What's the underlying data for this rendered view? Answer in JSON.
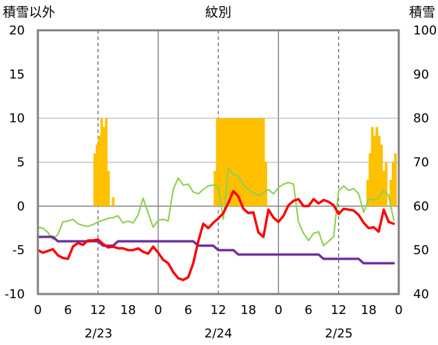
{
  "chart_data": {
    "type": "line",
    "title": "紋別",
    "left_axis": {
      "label": "積雪以外",
      "ylim": [
        -10,
        20
      ],
      "ticks": [
        20,
        15,
        10,
        5,
        0,
        -5,
        -10
      ]
    },
    "right_axis": {
      "label": "積雪",
      "ylim": [
        40,
        100
      ],
      "ticks": [
        100,
        90,
        80,
        70,
        60,
        50,
        40
      ]
    },
    "x_hour_labels": [
      "0",
      "6",
      "12",
      "18",
      "0",
      "6",
      "12",
      "18",
      "0",
      "6",
      "12",
      "18",
      "0"
    ],
    "date_labels": [
      "2/23",
      "2/24",
      "2/25"
    ],
    "grid": true,
    "colors": {
      "bars": "#FFC000",
      "red": "#FF0000",
      "green": "#92D050",
      "purple": "#7030A0",
      "frame": "#808080"
    },
    "series": [
      {
        "type": "bar",
        "axis": "left",
        "values": [
          0,
          0,
          0,
          0,
          0,
          0,
          0,
          0,
          0,
          0,
          0,
          0,
          0,
          0,
          0,
          0,
          0,
          0,
          0,
          0,
          0,
          0,
          0,
          0,
          6,
          7,
          8,
          10,
          9,
          10,
          4,
          0,
          1,
          0,
          0,
          0,
          0,
          0,
          0,
          0,
          0,
          0,
          0,
          0,
          0,
          0,
          0,
          0,
          0,
          0,
          0,
          0,
          0,
          0,
          0,
          0,
          0,
          0,
          0,
          0,
          0,
          0,
          0,
          0,
          0,
          0,
          0,
          0,
          0,
          0,
          0,
          0,
          0,
          0,
          0,
          0,
          4,
          10,
          10,
          10,
          10,
          10,
          10,
          10,
          10,
          10,
          10,
          10,
          10,
          10,
          10,
          10,
          10,
          10,
          10,
          10,
          10,
          10,
          5,
          0,
          0,
          0,
          0,
          0,
          0,
          0,
          0,
          0,
          0,
          0,
          0,
          0,
          0,
          0,
          0,
          0,
          0,
          0,
          0,
          0,
          0,
          0,
          0,
          0,
          0,
          0,
          0,
          0,
          0,
          0,
          0,
          0,
          0,
          0,
          0,
          0,
          0,
          0,
          0,
          0,
          0,
          0,
          3,
          6,
          9,
          8,
          9,
          8,
          7,
          4,
          5,
          0,
          3,
          5,
          6,
          0
        ]
      },
      {
        "type": "line",
        "axis": "left",
        "values": [
          -5,
          -5.3,
          -5.1,
          -4.9,
          -5.6,
          -5.9,
          -6,
          -4.6,
          -4.2,
          -4.4,
          -3.9,
          -3.9,
          -3.8,
          -4.3,
          -4.7,
          -4.6,
          -4.8,
          -4.8,
          -5,
          -5,
          -4.8,
          -5.2,
          -5.4,
          -4.6,
          -5.3,
          -6.1,
          -6.5,
          -7.5,
          -8.2,
          -8.4,
          -8.1,
          -6.5,
          -4,
          -2,
          -2.5,
          -1.9,
          -1.4,
          -0.8,
          0.4,
          1.7,
          1.1,
          -0.3,
          -0.8,
          -0.7,
          -3,
          -3.5,
          -0.4,
          -1.3,
          -1.8,
          -1.1,
          0.1,
          0.6,
          0.8,
          0,
          0,
          0.8,
          0.3,
          0.7,
          0.5,
          0.1,
          -0.9,
          -0.3,
          -0.4,
          -0.5,
          -1,
          -1.9,
          -2.5,
          -2.4,
          -2.9,
          -0.4,
          -1.8,
          -2
        ]
      },
      {
        "type": "line",
        "axis": "left",
        "values": [
          -2.4,
          -2.5,
          -3,
          -3.8,
          -3.2,
          -1.8,
          -1.7,
          -1.5,
          -2,
          -2.2,
          -2.3,
          -2.1,
          -1.8,
          -1.6,
          -1.4,
          -1.3,
          -1.1,
          -1.9,
          -1.7,
          -1.9,
          -1,
          0.9,
          -0.8,
          -2.4,
          -1.6,
          -1.5,
          -1.7,
          1.9,
          3.2,
          2.4,
          2.5,
          1.6,
          1.4,
          1.9,
          2.3,
          2.4,
          2.2,
          -1.5,
          4.3,
          3.6,
          3.4,
          2.4,
          1.9,
          1.5,
          1.2,
          1.5,
          1.9,
          1.4,
          2.1,
          2.5,
          2.7,
          2.5,
          -1.8,
          -3.1,
          -3.9,
          -3.1,
          -2.9,
          -4.5,
          -4,
          -3.5,
          1.7,
          2.3,
          1.8,
          2,
          1.4,
          -0.7,
          0.8,
          0.7,
          1,
          1.8,
          1.2,
          -1.6
        ]
      },
      {
        "type": "line",
        "axis": "right",
        "values": [
          53,
          53,
          53,
          53,
          52,
          52,
          52,
          52,
          52,
          52,
          52,
          52,
          52,
          51,
          51,
          51,
          52,
          52,
          52,
          52,
          52,
          52,
          52,
          52,
          52,
          52,
          52,
          52,
          52,
          52,
          52,
          52,
          51,
          51,
          51,
          51,
          50,
          50,
          50,
          50,
          49,
          49,
          49,
          49,
          49,
          49,
          49,
          49,
          49,
          49,
          49,
          49,
          49,
          49,
          49,
          49,
          49,
          48,
          48,
          48,
          48,
          48,
          48,
          48,
          48,
          47,
          47,
          47,
          47,
          47,
          47,
          47
        ]
      }
    ]
  }
}
